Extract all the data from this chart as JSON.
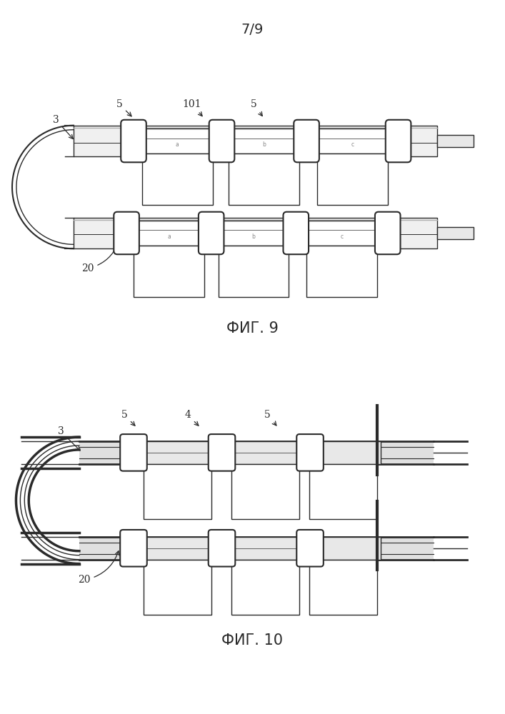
{
  "page_label": "7/9",
  "fig9_label": "ФИГ. 9",
  "fig10_label": "ФИГ. 10",
  "bg_color": "#ffffff",
  "lc": "#2a2a2a",
  "gray_light": "#d8d8d8",
  "gray_mid": "#b0b0b0"
}
